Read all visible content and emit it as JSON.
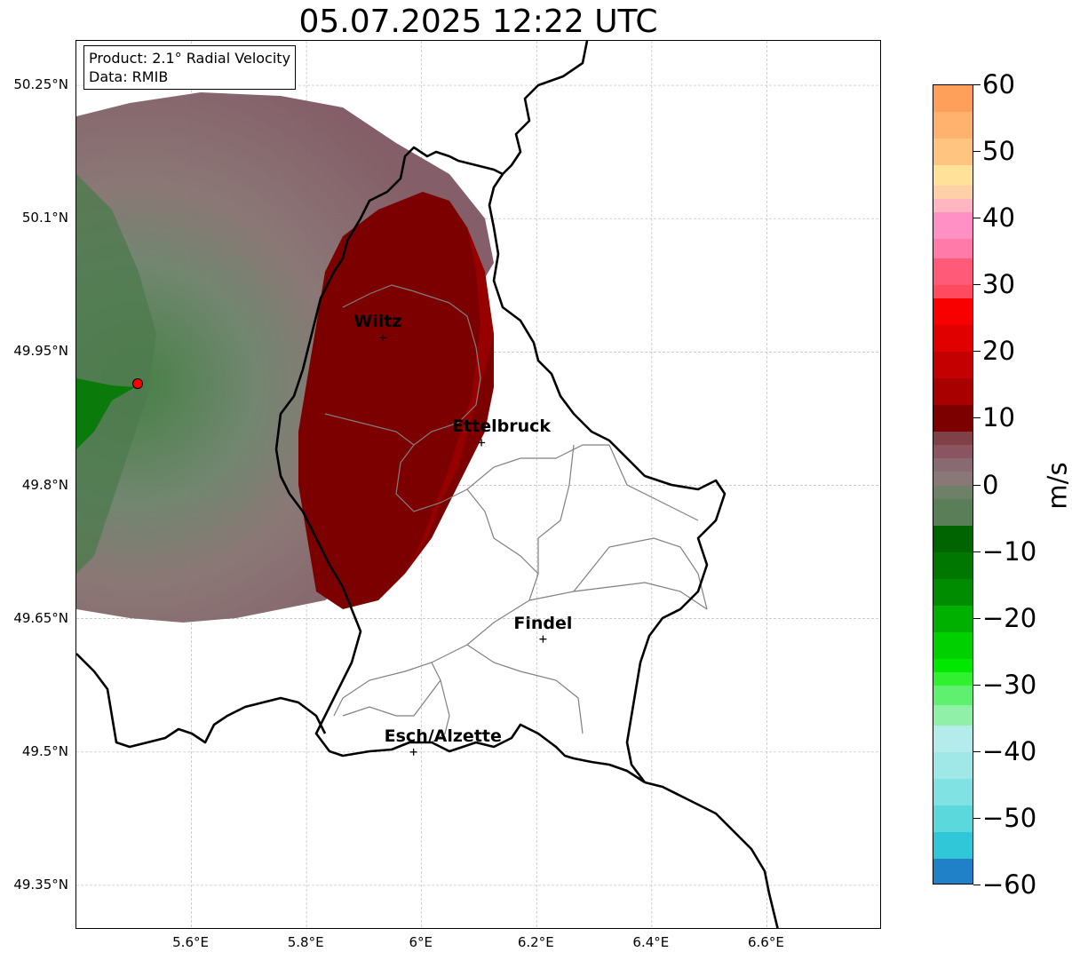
{
  "title": "05.07.2025 12:22 UTC",
  "info": {
    "product": "Product: 2.1° Radial Velocity",
    "source": "Data: RMIB"
  },
  "map": {
    "lon_range": [
      5.4,
      6.8
    ],
    "lat_range": [
      49.3,
      50.3
    ],
    "lat_ticks": [
      "50.25°N",
      "50.1°N",
      "49.95°N",
      "49.8°N",
      "49.65°N",
      "49.5°N",
      "49.35°N"
    ],
    "lat_tick_values": [
      50.25,
      50.1,
      49.95,
      49.8,
      49.65,
      49.5,
      49.35
    ],
    "lon_ticks": [
      "5.6°E",
      "5.8°E",
      "6°E",
      "6.2°E",
      "6.4°E",
      "6.6°E"
    ],
    "lon_tick_values": [
      5.6,
      5.8,
      6.0,
      6.2,
      6.4,
      6.6
    ],
    "gridlines": true,
    "radar_site": {
      "lon": 5.505,
      "lat": 49.914
    },
    "cities": [
      {
        "name": "Wiltz",
        "lon": 5.933,
        "lat": 49.966
      },
      {
        "name": "Ettelbruck",
        "lon": 6.104,
        "lat": 49.848
      },
      {
        "name": "Findel",
        "lon": 6.211,
        "lat": 49.627
      },
      {
        "name": "Esch/Alzette",
        "lon": 5.986,
        "lat": 49.5
      }
    ],
    "colors": {
      "border": "#000000",
      "canton_lines": "#808080",
      "radar_site": "#ff0000"
    }
  },
  "colorbar": {
    "unit": "m/s",
    "min": -60,
    "max": 60,
    "ticks": [
      "60",
      "50",
      "40",
      "30",
      "20",
      "10",
      "0",
      "−10",
      "−20",
      "−30",
      "−40",
      "−50",
      "−60"
    ],
    "tick_values": [
      60,
      50,
      40,
      30,
      20,
      10,
      0,
      -10,
      -20,
      -30,
      -40,
      -50,
      -60
    ],
    "segments": [
      {
        "from": 60,
        "to": 56,
        "color": "#ffa05a"
      },
      {
        "from": 56,
        "to": 52,
        "color": "#ffb26e"
      },
      {
        "from": 52,
        "to": 48,
        "color": "#ffc480"
      },
      {
        "from": 48,
        "to": 45,
        "color": "#ffe19a"
      },
      {
        "from": 45,
        "to": 43,
        "color": "#ffd0a8"
      },
      {
        "from": 43,
        "to": 41,
        "color": "#ffb6c0"
      },
      {
        "from": 41,
        "to": 37,
        "color": "#ff90c6"
      },
      {
        "from": 37,
        "to": 34,
        "color": "#ff7aa8"
      },
      {
        "from": 34,
        "to": 30,
        "color": "#ff5a78"
      },
      {
        "from": 30,
        "to": 28,
        "color": "#ff4a60"
      },
      {
        "from": 28,
        "to": 24,
        "color": "#f80000"
      },
      {
        "from": 24,
        "to": 20,
        "color": "#e00000"
      },
      {
        "from": 20,
        "to": 16,
        "color": "#c40000"
      },
      {
        "from": 16,
        "to": 12,
        "color": "#a80000"
      },
      {
        "from": 12,
        "to": 8,
        "color": "#7d0000"
      },
      {
        "from": 8,
        "to": 6,
        "color": "#804048"
      },
      {
        "from": 6,
        "to": 4,
        "color": "#8a5560"
      },
      {
        "from": 4,
        "to": 2,
        "color": "#8a6a72"
      },
      {
        "from": 2,
        "to": 0,
        "color": "#8a7878"
      },
      {
        "from": 0,
        "to": -2,
        "color": "#6e8068"
      },
      {
        "from": -2,
        "to": -6,
        "color": "#5a7e58"
      },
      {
        "from": -6,
        "to": -10,
        "color": "#006400"
      },
      {
        "from": -10,
        "to": -14,
        "color": "#007800"
      },
      {
        "from": -14,
        "to": -18,
        "color": "#008c00"
      },
      {
        "from": -18,
        "to": -22,
        "color": "#00b000"
      },
      {
        "from": -22,
        "to": -26,
        "color": "#00d000"
      },
      {
        "from": -26,
        "to": -28,
        "color": "#00e800"
      },
      {
        "from": -28,
        "to": -30,
        "color": "#30f030"
      },
      {
        "from": -30,
        "to": -33,
        "color": "#60f070"
      },
      {
        "from": -33,
        "to": -36,
        "color": "#90f0a8"
      },
      {
        "from": -36,
        "to": -40,
        "color": "#b4ecec"
      },
      {
        "from": -40,
        "to": -44,
        "color": "#a0e8e8"
      },
      {
        "from": -44,
        "to": -48,
        "color": "#80e2e2"
      },
      {
        "from": -48,
        "to": -52,
        "color": "#5ad8dc"
      },
      {
        "from": -52,
        "to": -56,
        "color": "#30c8d8"
      },
      {
        "from": -56,
        "to": -60,
        "color": "#2080c8"
      }
    ]
  }
}
